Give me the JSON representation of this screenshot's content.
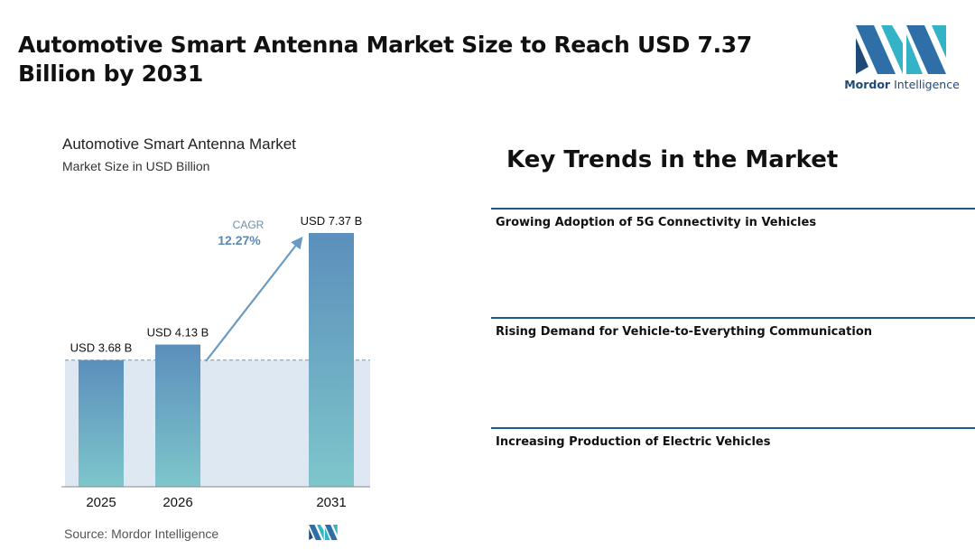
{
  "headline": "Automotive Smart Antenna Market Size to Reach USD 7.37 Billion by 2031",
  "brand": {
    "name_bold": "Mordor",
    "name_rest": " Intelligence",
    "logo": "mordor-intelligence-logo"
  },
  "chart_data": {
    "type": "bar",
    "title": "Automotive Smart Antenna Market",
    "subtitle": "Market Size in USD Billion",
    "categories": [
      "2025",
      "2026",
      "2031"
    ],
    "values": [
      3.68,
      4.13,
      7.37
    ],
    "value_labels": [
      "USD 3.68 B",
      "USD 4.13 B",
      "USD 7.37 B"
    ],
    "cagr_label": "CAGR",
    "cagr_value": "12.27%",
    "ylim": [
      0,
      7.37
    ]
  },
  "source": "Source:  Mordor Intelligence",
  "trends": {
    "title": "Key Trends in the Market",
    "items": [
      "Growing Adoption of 5G Connectivity in Vehicles",
      "Rising Demand for Vehicle-to-Everything Communication",
      "Increasing Production of Electric Vehicles"
    ]
  },
  "colors": {
    "bar_top": "#5b8fbc",
    "bar_bottom": "#7ec6cb",
    "band": "#dde8f2",
    "arrow": "#6a9bc4",
    "brand_dark": "#1f4a78",
    "brand_light": "#34b3c6"
  }
}
